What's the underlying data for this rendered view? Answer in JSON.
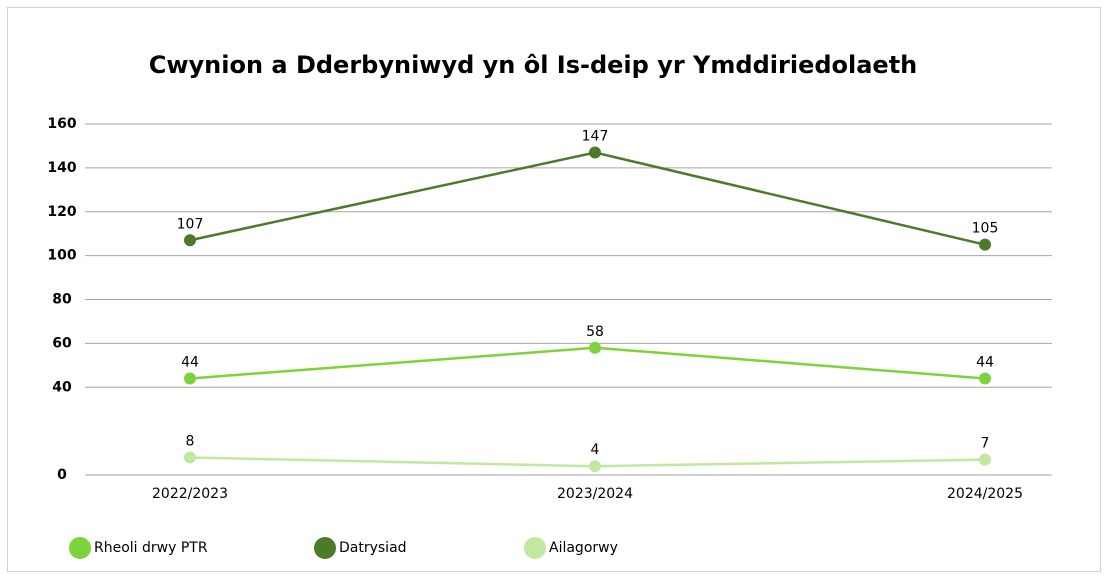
{
  "chart_data": {
    "type": "line",
    "title": "Cwynion a Dderbyniwyd yn ôl Is-deip yr Ymddiriedolaeth",
    "categories": [
      "2022/2023",
      "2023/2024",
      "2024/2025"
    ],
    "series": [
      {
        "name": "Rheoli drwy PTR",
        "color": "#7ed23a",
        "values": [
          44,
          58,
          44
        ]
      },
      {
        "name": "Datrysiad",
        "color": "#4d7a28",
        "values": [
          107,
          147,
          105
        ]
      },
      {
        "name": "Ailagorwy",
        "color": "#c2e8a0",
        "values": [
          8,
          4,
          7
        ]
      }
    ],
    "ylim": [
      0,
      160
    ],
    "yticks": [
      0,
      40,
      60,
      80,
      100,
      120,
      140,
      160
    ],
    "grid": true,
    "legend": "bottom"
  }
}
